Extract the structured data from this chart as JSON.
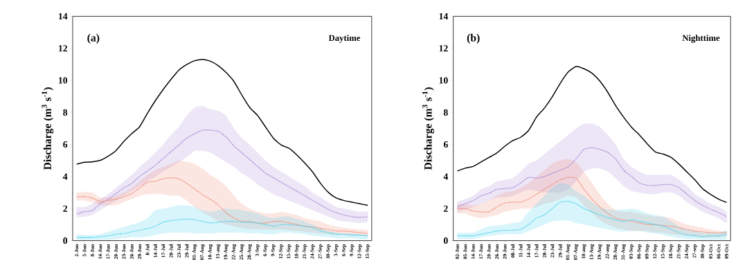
{
  "chart_data": [
    {
      "type": "line",
      "ylabel": "Discharge (m$^{3}$ s$^{-1}$)",
      "annotations": [
        "(a)",
        "Daytime"
      ],
      "categories": [
        "2-Jun",
        "5-Jun",
        "8-Jun",
        "14-Jun",
        "17-Jun",
        "20-Jun",
        "23-Jun",
        "26-Jun",
        "29-Jun",
        "8-Jul",
        "14-Jul",
        "17-Jul",
        "20-Jul",
        "23-Jul",
        "29-Jul",
        "01-Aug",
        "07-Aug",
        "10-Aug",
        "13-aug",
        "19-Aug",
        "22-Aug",
        "25-Aug",
        "28-Aug",
        "3-Sep",
        "6-Sep",
        "9-Sep",
        "12-Sep",
        "15-Sep",
        "18-Sep",
        "21-Sep",
        "24-Sep",
        "27-Sep",
        "30-Sep",
        "3-Sep",
        "6-Sep",
        "9-Sep",
        "12-Sep",
        "15-Sep"
      ],
      "ylim": [
        0,
        14
      ],
      "yticks": [
        0,
        2,
        4,
        6,
        8,
        10,
        12,
        14
      ],
      "series": [
        {
          "color": "#000000",
          "line_style": "solid",
          "values": [
            4.77,
            4.89,
            4.92,
            5.01,
            5.27,
            5.62,
            6.19,
            6.68,
            7.1,
            7.95,
            8.73,
            9.43,
            10.07,
            10.64,
            10.99,
            11.23,
            11.31,
            11.2,
            10.92,
            10.49,
            9.93,
            9.08,
            8.31,
            7.81,
            7.1,
            6.4,
            5.97,
            5.76,
            5.34,
            4.84,
            4.28,
            3.57,
            3.01,
            2.66,
            2.5,
            2.4,
            2.3,
            2.2
          ]
        },
        {
          "color": "#a98bd6",
          "line_style": "dashed",
          "values": [
            1.67,
            1.81,
            1.88,
            2.3,
            2.58,
            2.94,
            3.29,
            3.57,
            4.0,
            4.35,
            4.7,
            5.13,
            5.55,
            5.97,
            6.4,
            6.68,
            6.89,
            6.89,
            6.82,
            6.47,
            5.9,
            5.48,
            5.06,
            4.63,
            4.21,
            3.93,
            3.64,
            3.36,
            3.08,
            2.8,
            2.51,
            2.23,
            1.95,
            1.74,
            1.6,
            1.5,
            1.45,
            1.5
          ],
          "upper": [
            2.1,
            2.1,
            2.3,
            2.6,
            2.9,
            3.3,
            3.7,
            4.1,
            4.6,
            5.0,
            5.5,
            6.0,
            6.6,
            7.1,
            7.8,
            8.3,
            8.4,
            8.2,
            8.1,
            7.8,
            7.0,
            6.4,
            6.0,
            5.5,
            5.0,
            4.6,
            4.3,
            4.0,
            3.7,
            3.4,
            3.0,
            2.7,
            2.4,
            2.1,
            2.0,
            1.9,
            1.8,
            1.8
          ],
          "lower": [
            1.45,
            1.5,
            1.6,
            1.9,
            2.2,
            2.5,
            2.8,
            3.1,
            3.4,
            3.7,
            4.0,
            4.3,
            4.6,
            4.9,
            5.2,
            5.6,
            5.6,
            5.5,
            5.2,
            4.9,
            4.6,
            4.2,
            3.9,
            3.5,
            3.2,
            2.9,
            2.7,
            2.5,
            2.3,
            2.1,
            1.9,
            1.7,
            1.5,
            1.3,
            1.2,
            1.15,
            1.1,
            1.2
          ]
        },
        {
          "color": "#f08f7a",
          "line_style": "dashed",
          "values": [
            2.73,
            2.75,
            2.66,
            2.44,
            2.51,
            2.58,
            2.73,
            2.94,
            3.29,
            3.64,
            3.71,
            3.86,
            3.93,
            3.86,
            3.57,
            3.22,
            2.87,
            2.58,
            2.23,
            1.74,
            1.4,
            1.2,
            1.2,
            1.1,
            1.1,
            1.2,
            1.2,
            1.1,
            1.0,
            0.9,
            0.85,
            0.75,
            0.7,
            0.6,
            0.6,
            0.55,
            0.5,
            0.45
          ],
          "upper": [
            3.0,
            3.05,
            3.0,
            2.7,
            2.7,
            2.8,
            3.0,
            3.3,
            3.7,
            4.1,
            4.4,
            4.6,
            4.8,
            5.0,
            4.9,
            4.8,
            4.5,
            4.1,
            3.8,
            3.4,
            2.8,
            2.3,
            2.0,
            1.8,
            1.7,
            1.7,
            1.8,
            1.7,
            1.6,
            1.4,
            1.3,
            1.2,
            1.0,
            0.9,
            0.8,
            0.75,
            0.7,
            0.65
          ],
          "lower": [
            2.5,
            2.5,
            2.4,
            2.2,
            2.2,
            2.2,
            2.4,
            2.6,
            2.8,
            2.9,
            2.9,
            2.9,
            2.8,
            2.8,
            2.5,
            2.1,
            1.8,
            1.5,
            1.2,
            1.0,
            0.9,
            0.8,
            0.7,
            0.7,
            0.7,
            0.7,
            0.7,
            0.65,
            0.6,
            0.55,
            0.5,
            0.45,
            0.4,
            0.35,
            0.35,
            0.3,
            0.3,
            0.3
          ]
        },
        {
          "color": "#4fd3ee",
          "line_style": "dashed",
          "values": [
            0.2,
            0.2,
            0.2,
            0.25,
            0.3,
            0.4,
            0.45,
            0.55,
            0.65,
            0.75,
            0.9,
            1.15,
            1.25,
            1.3,
            1.35,
            1.3,
            1.2,
            1.1,
            1.15,
            1.2,
            1.2,
            1.15,
            1.15,
            1.1,
            1.0,
            0.9,
            1.0,
            1.0,
            0.95,
            0.9,
            0.8,
            0.6,
            0.5,
            0.4,
            0.4,
            0.35,
            0.35,
            0.3
          ],
          "upper": [
            0.4,
            0.35,
            0.35,
            0.4,
            0.55,
            0.7,
            0.85,
            1.0,
            1.15,
            1.4,
            1.9,
            2.0,
            2.1,
            2.2,
            2.2,
            2.1,
            1.9,
            1.8,
            1.9,
            2.0,
            1.95,
            1.9,
            1.8,
            1.7,
            1.5,
            1.4,
            1.5,
            1.5,
            1.35,
            1.2,
            1.0,
            0.8,
            0.6,
            0.5,
            0.45,
            0.45,
            0.4,
            0.35
          ],
          "lower": [
            0.05,
            0.05,
            0.05,
            0.05,
            0.05,
            0.1,
            0.15,
            0.2,
            0.2,
            0.25,
            0.35,
            0.45,
            0.5,
            0.5,
            0.5,
            0.45,
            0.45,
            0.45,
            0.5,
            0.5,
            0.5,
            0.5,
            0.45,
            0.45,
            0.4,
            0.4,
            0.5,
            0.5,
            0.45,
            0.4,
            0.3,
            0.25,
            0.2,
            0.15,
            0.15,
            0.15,
            0.1,
            0.1
          ]
        }
      ]
    },
    {
      "type": "line",
      "ylabel": "Discharge (m$^{3}$ s$^{-1}$)",
      "annotations": [
        "(b)",
        "Nighttime"
      ],
      "categories": [
        "02-Jun",
        "05-Jun",
        "14-Jun",
        "17-Jun",
        "20-Jun",
        "26-Jun",
        "29-Jun",
        "08-Jul",
        "11-Jul",
        "14-Jul",
        "17-Jul",
        "20-Jul",
        "23-Jul",
        "29-Jul",
        "01-Aug",
        "07-Aug",
        "10-aug",
        "13-Aug",
        "19-Aug",
        "22-aug",
        "28-Aug",
        "31-Aug",
        "03-Sep",
        "06-Sep",
        "09-Sep",
        "12-Sep",
        "15-Sep",
        "18-Sep",
        "21-Sep",
        "24-Sep",
        "27-sep",
        "30-Sep",
        "03-Oct",
        "06-Oct",
        "09-Oct"
      ],
      "ylim": [
        0,
        14
      ],
      "yticks": [
        0,
        2,
        4,
        6,
        8,
        10,
        12,
        14
      ],
      "series": [
        {
          "color": "#000000",
          "line_style": "solid",
          "values": [
            4.35,
            4.52,
            4.63,
            4.91,
            5.19,
            5.47,
            5.89,
            6.24,
            6.45,
            6.87,
            7.71,
            8.27,
            8.98,
            9.82,
            10.52,
            10.87,
            10.73,
            10.45,
            9.96,
            9.26,
            8.42,
            7.71,
            7.08,
            6.59,
            6.03,
            5.54,
            5.4,
            5.19,
            4.77,
            4.28,
            3.79,
            3.23,
            2.88,
            2.59,
            2.38
          ]
        },
        {
          "color": "#a98bd6",
          "line_style": "dashed",
          "values": [
            2.1,
            2.3,
            2.5,
            2.8,
            2.95,
            3.2,
            3.25,
            3.3,
            3.6,
            3.95,
            3.9,
            4.0,
            4.2,
            4.4,
            4.6,
            5.1,
            5.7,
            5.8,
            5.7,
            5.5,
            5.1,
            4.4,
            4.0,
            3.6,
            3.45,
            3.45,
            3.5,
            3.5,
            3.3,
            2.9,
            2.5,
            2.2,
            1.95,
            1.75,
            1.5
          ],
          "upper": [
            2.4,
            2.6,
            2.8,
            3.2,
            3.4,
            3.7,
            3.8,
            3.9,
            4.3,
            4.8,
            5.0,
            5.4,
            5.8,
            6.2,
            6.6,
            7.0,
            7.3,
            7.3,
            7.1,
            6.6,
            6.0,
            5.1,
            4.6,
            4.3,
            4.1,
            4.1,
            4.1,
            4.1,
            3.8,
            3.4,
            2.9,
            2.6,
            2.3,
            2.1,
            1.8
          ],
          "lower": [
            1.8,
            1.9,
            2.1,
            2.3,
            2.5,
            2.7,
            2.7,
            2.8,
            3.0,
            3.2,
            3.1,
            3.0,
            3.0,
            3.0,
            3.2,
            3.7,
            4.3,
            4.5,
            4.5,
            4.3,
            3.9,
            3.4,
            3.1,
            3.0,
            2.9,
            2.9,
            3.0,
            3.0,
            2.8,
            2.4,
            2.1,
            1.8,
            1.6,
            1.4,
            1.1
          ]
        },
        {
          "color": "#f08f7a",
          "line_style": "dashed",
          "values": [
            2.0,
            2.0,
            1.85,
            1.8,
            1.8,
            2.1,
            2.35,
            2.4,
            2.4,
            2.6,
            2.9,
            3.2,
            3.5,
            3.8,
            3.95,
            3.9,
            3.2,
            2.6,
            2.1,
            1.7,
            1.4,
            1.3,
            1.2,
            1.1,
            1.0,
            1.0,
            0.95,
            0.9,
            0.8,
            0.7,
            0.6,
            0.55,
            0.5,
            0.5,
            0.5
          ],
          "upper": [
            2.3,
            2.3,
            2.2,
            2.3,
            2.5,
            2.8,
            3.0,
            3.1,
            3.3,
            3.6,
            4.0,
            4.4,
            4.8,
            5.0,
            5.1,
            4.9,
            4.3,
            3.6,
            2.9,
            2.3,
            1.9,
            1.8,
            1.8,
            1.7,
            1.6,
            1.5,
            1.5,
            1.4,
            1.2,
            1.0,
            0.9,
            0.8,
            0.7,
            0.6,
            0.6
          ],
          "lower": [
            1.7,
            1.7,
            1.5,
            1.4,
            1.5,
            1.6,
            1.8,
            1.9,
            2.0,
            2.0,
            2.1,
            2.3,
            2.4,
            2.6,
            2.8,
            2.7,
            2.2,
            1.7,
            1.3,
            1.0,
            0.8,
            0.7,
            0.6,
            0.6,
            0.6,
            0.5,
            0.5,
            0.4,
            0.35,
            0.3,
            0.25,
            0.2,
            0.2,
            0.2,
            0.3
          ]
        },
        {
          "color": "#4fd3ee",
          "line_style": "dashed",
          "values": [
            0.3,
            0.3,
            0.3,
            0.4,
            0.5,
            0.6,
            0.65,
            0.65,
            0.7,
            1.0,
            1.4,
            1.6,
            2.0,
            2.4,
            2.45,
            2.3,
            2.0,
            1.8,
            1.6,
            1.45,
            1.3,
            1.2,
            1.3,
            1.2,
            1.1,
            1.0,
            0.9,
            0.7,
            0.5,
            0.35,
            0.3,
            0.25,
            0.3,
            0.3,
            0.4
          ],
          "upper": [
            0.5,
            0.5,
            0.5,
            0.7,
            0.9,
            0.95,
            1.0,
            1.1,
            1.2,
            1.8,
            2.3,
            2.8,
            3.3,
            3.6,
            3.5,
            3.1,
            2.8,
            2.4,
            2.1,
            1.95,
            1.9,
            1.95,
            2.0,
            1.9,
            1.7,
            1.6,
            1.5,
            1.2,
            0.9,
            0.7,
            0.6,
            0.5,
            0.5,
            0.5,
            0.6
          ],
          "lower": [
            0.1,
            0.1,
            0.1,
            0.2,
            0.3,
            0.35,
            0.4,
            0.4,
            0.4,
            0.6,
            0.8,
            1.0,
            1.2,
            1.25,
            1.25,
            1.1,
            1.0,
            0.9,
            0.8,
            0.7,
            0.6,
            0.55,
            0.6,
            0.6,
            0.5,
            0.45,
            0.35,
            0.25,
            0.15,
            0.1,
            0.1,
            0.05,
            0.05,
            0.05,
            0.1
          ]
        }
      ]
    }
  ]
}
